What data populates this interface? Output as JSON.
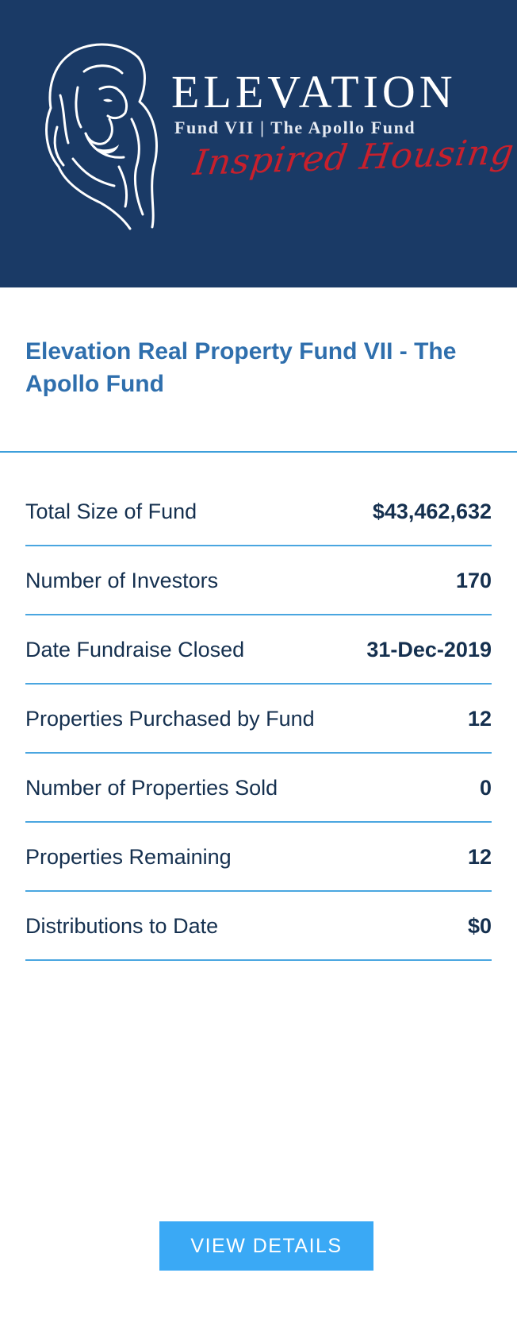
{
  "banner": {
    "brand_name": "ELEVATION",
    "brand_subtitle": "Fund VII | The Apollo Fund",
    "brand_script": "Inspired Housing",
    "background_color": "#1a3a66",
    "script_color": "#c8202c",
    "logo_icon": "lion-head-icon"
  },
  "fund": {
    "title": "Elevation Real Property Fund VII - The Apollo Fund",
    "title_color": "#2f6fad"
  },
  "stats": [
    {
      "label": "Total Size of Fund",
      "value": "$43,462,632"
    },
    {
      "label": "Number of Investors",
      "value": "170"
    },
    {
      "label": "Date Fundraise Closed",
      "value": "31-Dec-2019"
    },
    {
      "label": "Properties Purchased by Fund",
      "value": "12"
    },
    {
      "label": "Number of Properties Sold",
      "value": "0"
    },
    {
      "label": "Properties Remaining",
      "value": "12"
    },
    {
      "label": "Distributions to Date",
      "value": "$0"
    }
  ],
  "actions": {
    "view_details_label": "VIEW DETAILS",
    "button_color": "#3aa9f5"
  }
}
